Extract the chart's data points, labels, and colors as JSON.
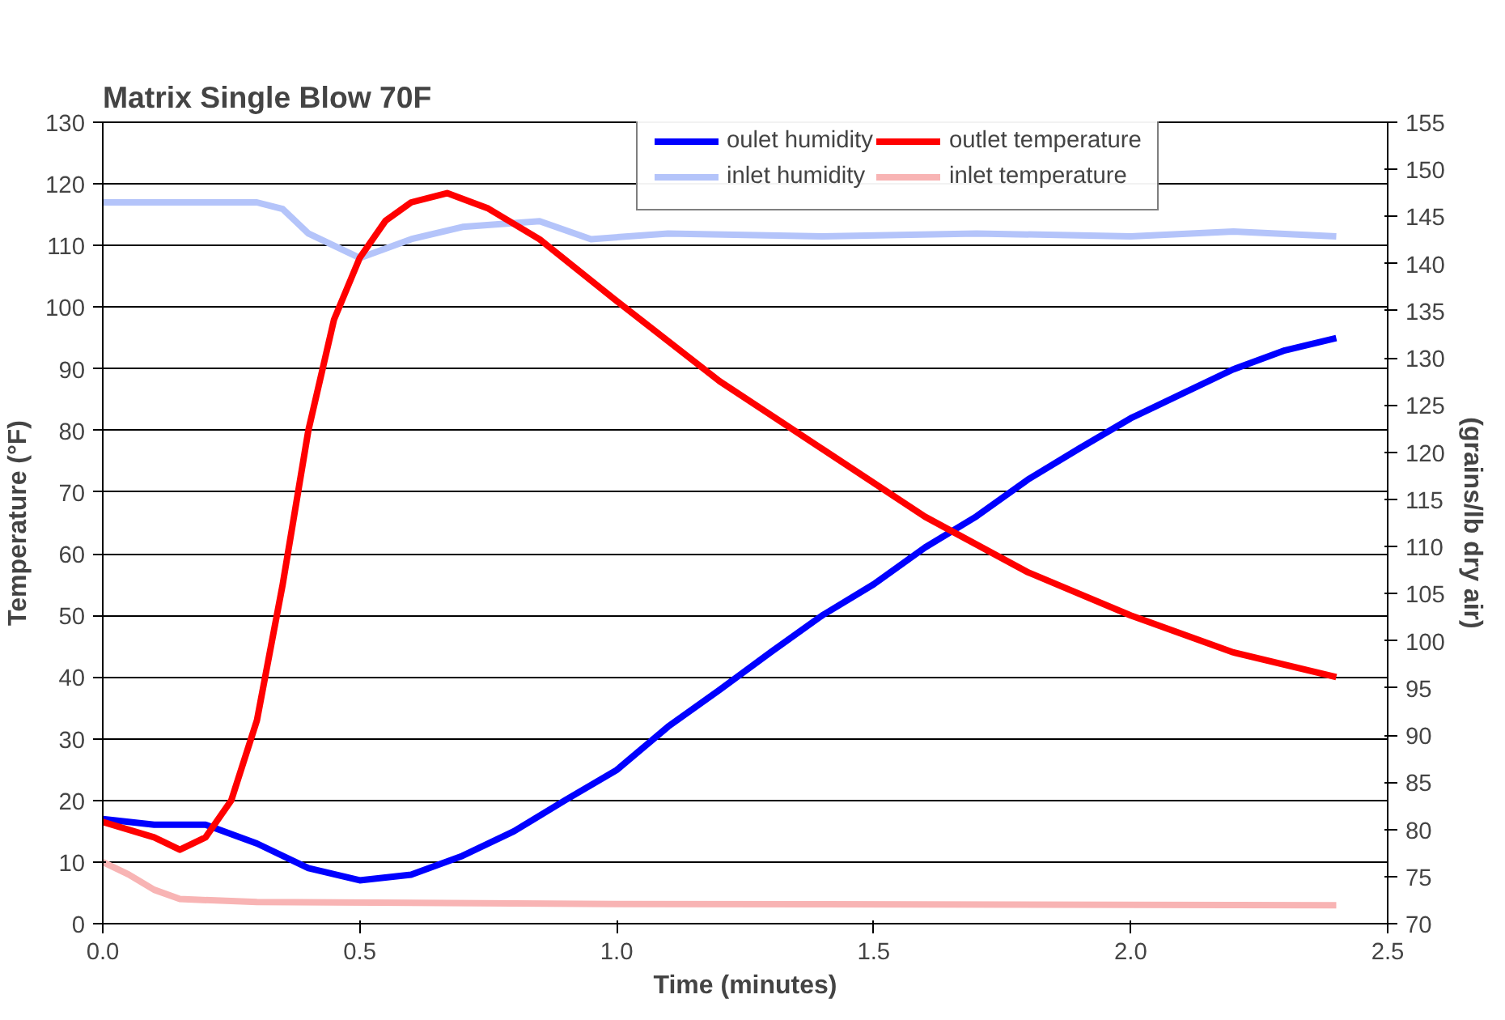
{
  "chart_data": {
    "type": "line",
    "title": "Matrix Single Blow 70F",
    "xlabel": "Time (minutes)",
    "ylabel": "Temperature (°F)",
    "y2label": "(grains/lb dry air)",
    "xlim": [
      0,
      2.5
    ],
    "xticks": [
      {
        "value": 0,
        "label": "0.0"
      },
      0.5,
      {
        "value": 1,
        "label": "1.0"
      },
      1.5,
      {
        "value": 2,
        "label": "2.0"
      },
      2.5
    ],
    "ylim": [
      0,
      130
    ],
    "yticks": [
      0,
      10,
      20,
      30,
      40,
      50,
      60,
      70,
      80,
      90,
      100,
      110,
      120,
      130
    ],
    "y2lim": [
      70,
      155
    ],
    "y2ticks": [
      70,
      75,
      80,
      85,
      90,
      95,
      100,
      105,
      110,
      115,
      120,
      125,
      130,
      135,
      140,
      145,
      150,
      155
    ],
    "grid": "y",
    "legend": "top",
    "marker": "none",
    "line_style": "solid",
    "series": [
      {
        "name": "oulet humidity",
        "color": "#0000ff",
        "axis": "y2",
        "x": [
          0,
          0.1,
          0.2,
          0.3,
          0.4,
          0.5,
          0.6,
          0.7,
          0.8,
          0.9,
          1.0,
          1.1,
          1.2,
          1.3,
          1.4,
          1.5,
          1.6,
          1.7,
          1.8,
          1.9,
          2.0,
          2.1,
          2.2,
          2.3,
          2.4
        ],
        "values": [
          81.1,
          80.5,
          80.5,
          78.5,
          75.9,
          74.6,
          75.2,
          77.2,
          79.8,
          83.1,
          86.3,
          90.9,
          94.8,
          98.8,
          102.7,
          106,
          109.9,
          113.2,
          117.1,
          120.4,
          123.6,
          126.2,
          128.8,
          130.8,
          132.1
        ]
      },
      {
        "name": "inlet humidity",
        "color": "#b4c4fa",
        "axis": "y2",
        "x": [
          0,
          0.2,
          0.3,
          0.35,
          0.4,
          0.5,
          0.6,
          0.7,
          0.85,
          0.95,
          1.1,
          1.4,
          1.7,
          2.0,
          2.2,
          2.4
        ],
        "values": [
          146.5,
          146.5,
          146.5,
          145.8,
          143.2,
          140.6,
          142.6,
          143.9,
          144.5,
          142.6,
          143.2,
          142.9,
          143.2,
          142.9,
          143.4,
          142.9
        ]
      },
      {
        "name": "outlet temperature",
        "color": "#ff0000",
        "x": [
          0,
          0.1,
          0.15,
          0.2,
          0.25,
          0.3,
          0.35,
          0.4,
          0.45,
          0.5,
          0.55,
          0.6,
          0.67,
          0.75,
          0.85,
          1.0,
          1.2,
          1.4,
          1.6,
          1.8,
          2.0,
          2.2,
          2.4
        ],
        "values": [
          16.5,
          14,
          12,
          14,
          20,
          33,
          55,
          80,
          98,
          108,
          114,
          117,
          118.5,
          116,
          111,
          101,
          88,
          77,
          66,
          57,
          50,
          44,
          40
        ]
      },
      {
        "name": "inlet temperature",
        "color": "#f8b4b4",
        "x": [
          0,
          0.05,
          0.1,
          0.15,
          0.3,
          1.0,
          2.4
        ],
        "values": [
          10,
          8,
          5.5,
          4,
          3.5,
          3.2,
          3
        ]
      }
    ]
  }
}
